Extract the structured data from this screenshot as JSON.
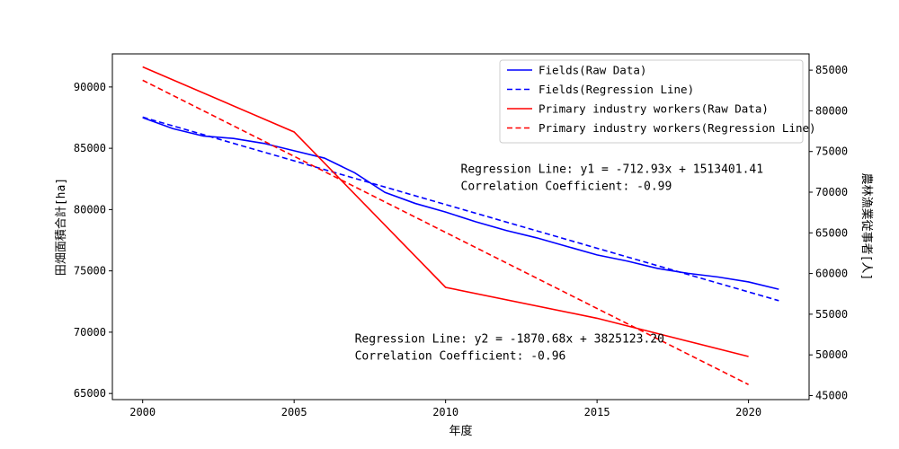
{
  "chart_data": {
    "type": "line",
    "xlabel": "年度",
    "ylabel_left": "田畑面積合計[ha]",
    "ylabel_right": "農林漁業従事者[人]",
    "xlim": [
      1999,
      2022
    ],
    "x_ticks": [
      2000,
      2005,
      2010,
      2015,
      2020
    ],
    "ylim_left": [
      64500,
      92700
    ],
    "y_ticks_left": [
      65000,
      70000,
      75000,
      80000,
      85000,
      90000
    ],
    "ylim_right": [
      44500,
      87000
    ],
    "y_ticks_right": [
      45000,
      50000,
      55000,
      60000,
      65000,
      70000,
      75000,
      80000,
      85000
    ],
    "legend_position": "upper-right",
    "grid": false,
    "series": [
      {
        "name": "Fields(Raw Data)",
        "axis": "left",
        "color": "#0000ff",
        "dash": "solid",
        "x": [
          2000,
          2001,
          2002,
          2003,
          2004,
          2005,
          2006,
          2007,
          2008,
          2009,
          2010,
          2011,
          2012,
          2013,
          2014,
          2015,
          2016,
          2017,
          2018,
          2019,
          2020,
          2021
        ],
        "y": [
          87500,
          86600,
          86000,
          85800,
          85400,
          84800,
          84200,
          83000,
          81400,
          80500,
          79800,
          79000,
          78300,
          77700,
          77000,
          76300,
          75800,
          75200,
          74800,
          74500,
          74100,
          73500
        ]
      },
      {
        "name": "Fields(Regression Line)",
        "axis": "left",
        "color": "#0000ff",
        "dash": "dashed",
        "x": [
          2000,
          2021
        ],
        "y": [
          87540,
          72570
        ]
      },
      {
        "name": "Primary industry workers(Raw Data)",
        "axis": "right",
        "color": "#ff0000",
        "dash": "solid",
        "x": [
          2000,
          2005,
          2010,
          2015,
          2020
        ],
        "y": [
          85400,
          77400,
          58300,
          54500,
          49800
        ]
      },
      {
        "name": "Primary industry workers(Regression Line)",
        "axis": "right",
        "color": "#ff0000",
        "dash": "dashed",
        "x": [
          2000,
          2020
        ],
        "y": [
          83760,
          46350
        ]
      }
    ],
    "annotations": [
      {
        "id": "fields",
        "axis": "left",
        "x": 2010.5,
        "y": 83000,
        "lines": [
          "Regression Line: y1 = -712.93x + 1513401.41",
          "Correlation Coefficient: -0.99"
        ]
      },
      {
        "id": "workers",
        "axis": "right",
        "x": 2007,
        "y": 51500,
        "lines": [
          "Regression Line: y2 = -1870.68x + 3825123.20",
          "Correlation Coefficient: -0.96"
        ]
      }
    ]
  }
}
